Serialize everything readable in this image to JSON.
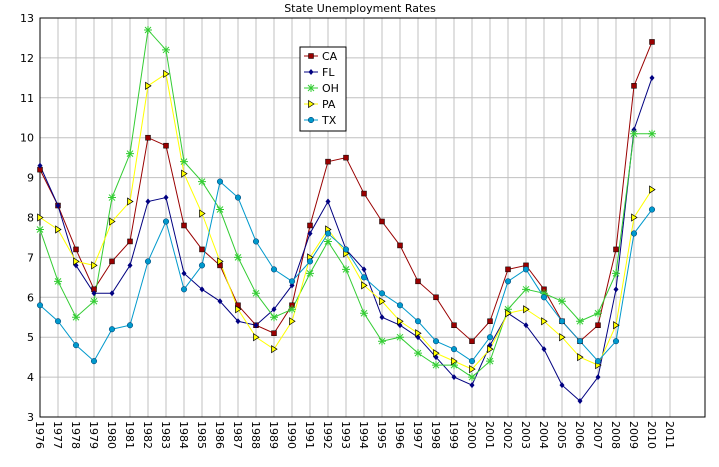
{
  "chart_data": {
    "type": "line",
    "title": "State Unemployment Rates",
    "categories": [
      "1976",
      "1977",
      "1978",
      "1979",
      "1980",
      "1981",
      "1982",
      "1983",
      "1984",
      "1985",
      "1986",
      "1987",
      "1988",
      "1989",
      "1990",
      "1991",
      "1992",
      "1993",
      "1994",
      "1995",
      "1996",
      "1997",
      "1998",
      "1999",
      "2000",
      "2001",
      "2002",
      "2003",
      "2004",
      "2005",
      "2006",
      "2007",
      "2008",
      "2009",
      "2010",
      "2011"
    ],
    "series": [
      {
        "name": "CA",
        "color": "#990000",
        "marker": "square",
        "values": [
          9.2,
          8.3,
          7.2,
          6.2,
          6.9,
          7.4,
          10.0,
          9.8,
          7.8,
          7.2,
          6.8,
          5.8,
          5.3,
          5.1,
          5.8,
          7.8,
          9.4,
          9.5,
          8.6,
          7.9,
          7.3,
          6.4,
          6.0,
          5.3,
          4.9,
          5.4,
          6.7,
          6.8,
          6.2,
          5.4,
          4.9,
          5.3,
          7.2,
          11.3,
          12.4,
          null
        ]
      },
      {
        "name": "FL",
        "color": "#000080",
        "marker": "diamond",
        "values": [
          9.3,
          8.3,
          6.8,
          6.1,
          6.1,
          6.8,
          8.4,
          8.5,
          6.6,
          6.2,
          5.9,
          5.4,
          5.3,
          5.7,
          6.3,
          7.6,
          8.4,
          7.2,
          6.7,
          5.5,
          5.3,
          5.0,
          4.5,
          4.0,
          3.8,
          4.8,
          5.6,
          5.3,
          4.7,
          3.8,
          3.4,
          4.0,
          6.2,
          10.2,
          11.5,
          null
        ]
      },
      {
        "name": "OH",
        "color": "#33cc33",
        "marker": "star",
        "values": [
          7.7,
          6.4,
          5.5,
          5.9,
          8.5,
          9.6,
          12.7,
          12.2,
          9.4,
          8.9,
          8.2,
          7.0,
          6.1,
          5.5,
          5.7,
          6.6,
          7.4,
          6.7,
          5.6,
          4.9,
          5.0,
          4.6,
          4.3,
          4.3,
          4.0,
          4.4,
          5.7,
          6.2,
          6.1,
          5.9,
          5.4,
          5.6,
          6.6,
          10.1,
          10.1,
          null
        ]
      },
      {
        "name": "PA",
        "color": "#ffff00",
        "marker": "triangle",
        "values": [
          8.0,
          7.7,
          6.9,
          6.8,
          7.9,
          8.4,
          11.3,
          11.6,
          9.1,
          8.1,
          6.9,
          5.7,
          5.0,
          4.7,
          5.4,
          7.0,
          7.7,
          7.1,
          6.3,
          5.9,
          5.4,
          5.1,
          4.6,
          4.4,
          4.2,
          4.7,
          5.6,
          5.7,
          5.4,
          5.0,
          4.5,
          4.3,
          5.3,
          8.0,
          8.7,
          null
        ]
      },
      {
        "name": "TX",
        "color": "#0099cc",
        "marker": "circle",
        "values": [
          5.8,
          5.4,
          4.8,
          4.4,
          5.2,
          5.3,
          6.9,
          7.9,
          6.2,
          6.8,
          8.9,
          8.5,
          7.4,
          6.7,
          6.4,
          6.9,
          7.6,
          7.2,
          6.5,
          6.1,
          5.8,
          5.4,
          4.9,
          4.7,
          4.4,
          5.0,
          6.4,
          6.7,
          6.0,
          5.4,
          4.9,
          4.4,
          4.9,
          7.6,
          8.2,
          null
        ]
      }
    ],
    "ylim": [
      3,
      13
    ],
    "yticks": [
      3,
      4,
      5,
      6,
      7,
      8,
      9,
      10,
      11,
      12,
      13
    ],
    "grid": true
  }
}
